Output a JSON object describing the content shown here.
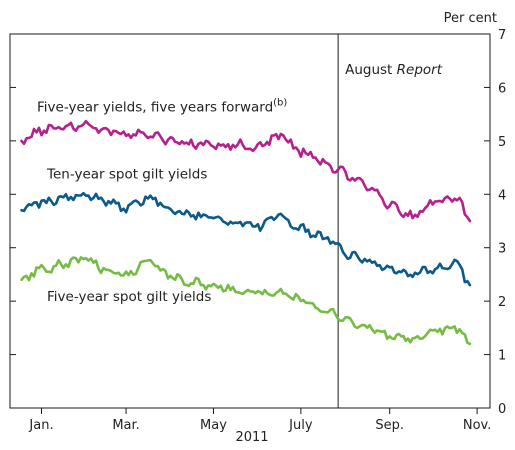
{
  "chart_data": {
    "type": "line",
    "title": "",
    "xlabel": "2011",
    "ylabel": "Per cent",
    "ylim": [
      0,
      7
    ],
    "yticks": [
      "0",
      "1",
      "2",
      "3",
      "4",
      "5",
      "6",
      "7"
    ],
    "x_tick_labels": [
      "Jan.",
      "Mar.",
      "May",
      "July",
      "Sep.",
      "Nov."
    ],
    "x_tick_dates": [
      "2011-01-15",
      "2011-03-15",
      "2011-05-15",
      "2011-07-15",
      "2011-09-15",
      "2011-11-15"
    ],
    "xlim": [
      "2010-12-24",
      "2011-11-24"
    ],
    "y_axis_side": "right",
    "grid": false,
    "annotation": {
      "date": "2011-08-10",
      "text_plain": "August ",
      "text_italic": "Report"
    },
    "series": [
      {
        "name": "Five-year yields, five years forward",
        "footnote": "(b)",
        "color": "#b5208f",
        "x": [
          "2011-01-01",
          "2011-01-15",
          "2011-02-01",
          "2011-02-15",
          "2011-03-01",
          "2011-03-15",
          "2011-04-01",
          "2011-04-15",
          "2011-05-01",
          "2011-05-15",
          "2011-06-01",
          "2011-06-15",
          "2011-07-01",
          "2011-07-15",
          "2011-08-01",
          "2011-08-10",
          "2011-08-20",
          "2011-09-01",
          "2011-09-15",
          "2011-10-01",
          "2011-10-15",
          "2011-11-01",
          "2011-11-10"
        ],
        "values": [
          5.0,
          5.2,
          5.25,
          5.3,
          5.2,
          5.1,
          5.1,
          5.0,
          4.95,
          4.92,
          4.92,
          4.88,
          5.1,
          4.8,
          4.6,
          4.45,
          4.3,
          4.1,
          3.8,
          3.6,
          3.85,
          3.9,
          3.5
        ]
      },
      {
        "name": "Ten-year spot gilt yields",
        "color": "#0b5a8a",
        "x": [
          "2011-01-01",
          "2011-01-15",
          "2011-02-01",
          "2011-02-15",
          "2011-03-01",
          "2011-03-15",
          "2011-04-01",
          "2011-04-15",
          "2011-05-01",
          "2011-05-15",
          "2011-06-01",
          "2011-06-15",
          "2011-07-01",
          "2011-07-15",
          "2011-08-01",
          "2011-08-10",
          "2011-08-20",
          "2011-09-01",
          "2011-09-15",
          "2011-10-01",
          "2011-10-15",
          "2011-11-01",
          "2011-11-10"
        ],
        "values": [
          3.7,
          3.85,
          3.95,
          4.0,
          3.85,
          3.75,
          3.95,
          3.7,
          3.6,
          3.55,
          3.45,
          3.4,
          3.6,
          3.35,
          3.2,
          3.0,
          2.85,
          2.75,
          2.6,
          2.5,
          2.6,
          2.7,
          2.3
        ]
      },
      {
        "name": "Five-year spot gilt yields",
        "color": "#76bc43",
        "x": [
          "2011-01-01",
          "2011-01-15",
          "2011-02-01",
          "2011-02-15",
          "2011-03-01",
          "2011-03-15",
          "2011-04-01",
          "2011-04-15",
          "2011-05-01",
          "2011-05-15",
          "2011-06-01",
          "2011-06-15",
          "2011-07-01",
          "2011-07-15",
          "2011-08-01",
          "2011-08-10",
          "2011-08-20",
          "2011-09-01",
          "2011-09-15",
          "2011-10-01",
          "2011-10-15",
          "2011-11-01",
          "2011-11-10"
        ],
        "values": [
          2.4,
          2.6,
          2.7,
          2.8,
          2.6,
          2.5,
          2.75,
          2.45,
          2.35,
          2.3,
          2.2,
          2.15,
          2.2,
          2.0,
          1.85,
          1.7,
          1.6,
          1.5,
          1.35,
          1.3,
          1.45,
          1.5,
          1.2
        ]
      }
    ]
  }
}
